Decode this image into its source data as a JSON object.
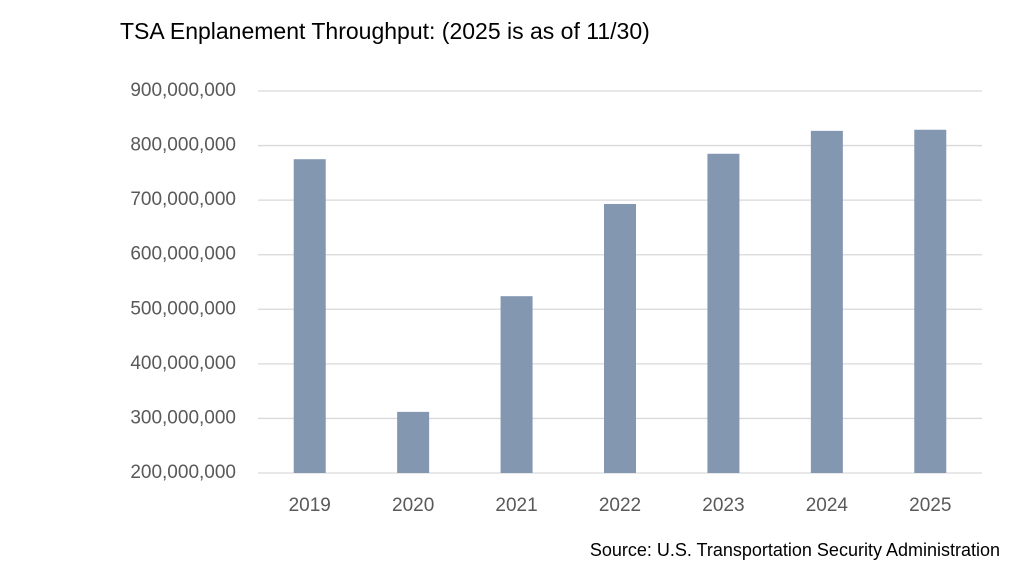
{
  "chart_data": {
    "type": "bar",
    "title": "TSA Enplanement Throughput: (2025 is as of 11/30)",
    "source": "Source: U.S. Transportation Security Administration",
    "categories": [
      "2019",
      "2020",
      "2021",
      "2022",
      "2023",
      "2024",
      "2025"
    ],
    "values": [
      775000000,
      312000000,
      524000000,
      693000000,
      785000000,
      827000000,
      829000000
    ],
    "color": "#8497b0",
    "ylim": [
      200000000,
      900000000
    ],
    "yticks": [
      {
        "value": 200000000,
        "label": "200,000,000"
      },
      {
        "value": 300000000,
        "label": "300,000,000"
      },
      {
        "value": 400000000,
        "label": "400,000,000"
      },
      {
        "value": 500000000,
        "label": "500,000,000"
      },
      {
        "value": 600000000,
        "label": "600,000,000"
      },
      {
        "value": 700000000,
        "label": "700,000,000"
      },
      {
        "value": 800000000,
        "label": "800,000,000"
      },
      {
        "value": 900000000,
        "label": "900,000,000"
      }
    ],
    "grid": true
  }
}
